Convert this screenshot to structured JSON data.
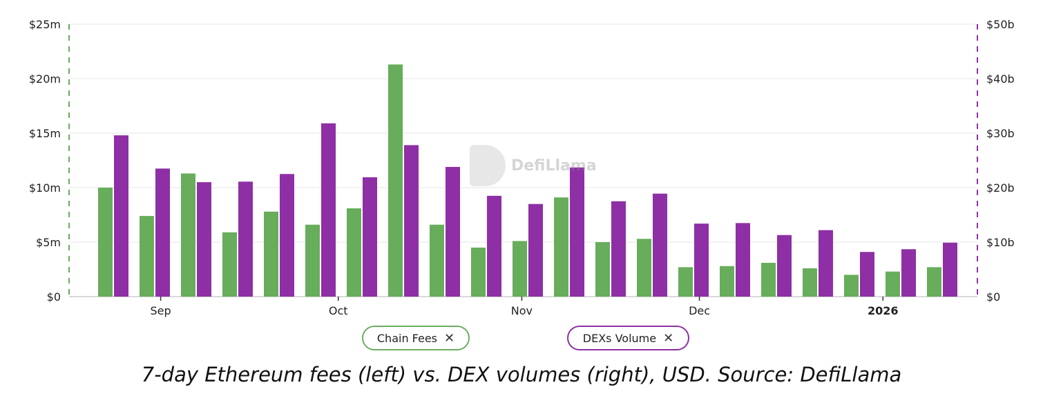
{
  "chart_data": {
    "type": "bar",
    "x": [
      "2025-08-24",
      "2025-08-31",
      "2025-09-07",
      "2025-09-14",
      "2025-09-21",
      "2025-09-28",
      "2025-10-05",
      "2025-10-12",
      "2025-10-19",
      "2025-10-26",
      "2025-11-02",
      "2025-11-09",
      "2025-11-16",
      "2025-11-23",
      "2025-11-30",
      "2025-12-07",
      "2025-12-14",
      "2025-12-21",
      "2025-12-28",
      "2026-01-04",
      "2026-01-11"
    ],
    "series": [
      {
        "name": "Chain Fees",
        "axis": "left",
        "unit": "USD millions",
        "color": "#67ad5b",
        "values": [
          10.0,
          7.4,
          11.3,
          5.9,
          7.8,
          6.6,
          8.1,
          21.3,
          6.6,
          4.5,
          5.1,
          9.1,
          5.0,
          5.3,
          2.7,
          2.8,
          3.1,
          2.6,
          2.0,
          2.3,
          2.7
        ]
      },
      {
        "name": "DEXs Volume",
        "axis": "right",
        "unit": "USD billions",
        "color": "#8e2fa6",
        "values": [
          29.6,
          23.5,
          21.0,
          21.1,
          22.5,
          31.8,
          21.9,
          27.8,
          23.8,
          18.5,
          17.0,
          23.7,
          17.5,
          18.9,
          13.4,
          13.5,
          11.3,
          12.2,
          8.2,
          8.7,
          9.9
        ]
      }
    ],
    "left_axis": {
      "range": [
        0,
        25
      ],
      "ticks": [
        "$0",
        "$5m",
        "$10m",
        "$15m",
        "$20m",
        "$25m"
      ],
      "color": "#67ad5b"
    },
    "right_axis": {
      "range": [
        0,
        50
      ],
      "ticks": [
        "$0",
        "$10b",
        "$20b",
        "$30b",
        "$40b",
        "$50b"
      ],
      "color": "#8e2fa6"
    },
    "x_ticks": [
      {
        "date": "2025-09-01",
        "label": "Sep",
        "bold": false
      },
      {
        "date": "2025-10-01",
        "label": "Oct",
        "bold": false
      },
      {
        "date": "2025-11-01",
        "label": "Nov",
        "bold": false
      },
      {
        "date": "2025-12-01",
        "label": "Dec",
        "bold": false
      },
      {
        "date": "2026-01-01",
        "label": "2026",
        "bold": true
      }
    ],
    "grid": true,
    "legend_placement": "bottom",
    "title": ""
  },
  "legend": {
    "items": [
      {
        "label": "Chain Fees",
        "close": "✕",
        "color": "#67ad5b"
      },
      {
        "label": "DEXs Volume",
        "close": "✕",
        "color": "#8e2fa6"
      }
    ]
  },
  "watermark": "DefiLlama",
  "caption": "7-day Ethereum fees (left) vs. DEX volumes (right), USD. Source: DefiLlama"
}
